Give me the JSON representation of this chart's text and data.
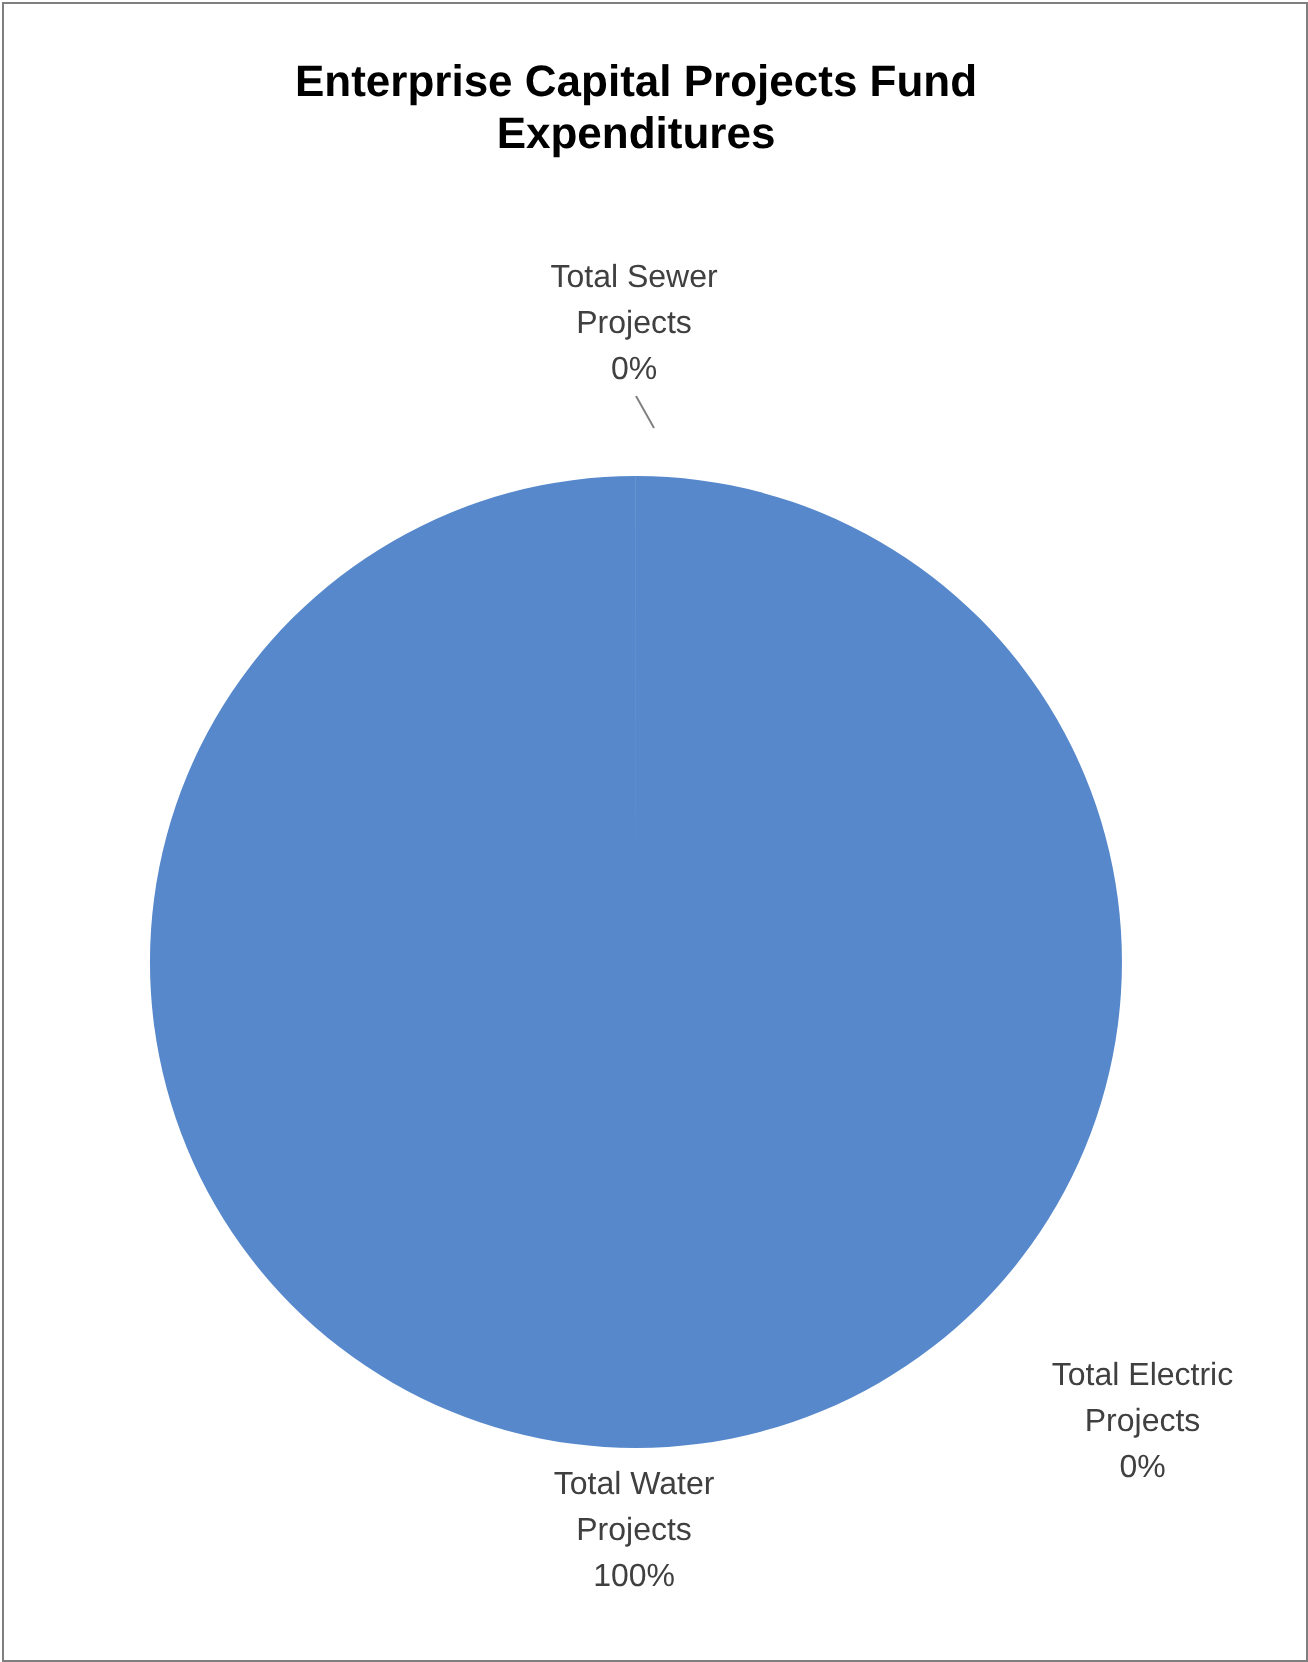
{
  "chart_data": {
    "type": "pie",
    "title": "Enterprise Capital Projects Fund Expenditures",
    "categories": [
      "Total Water Projects",
      "Total Electric Projects",
      "Total Sewer Projects"
    ],
    "values": [
      100,
      0,
      0
    ],
    "colors": [
      "#5688cb",
      "#c0504d",
      "#9bbb59"
    ],
    "value_labels": [
      "100%",
      "0%",
      "0%"
    ],
    "legend": false
  }
}
